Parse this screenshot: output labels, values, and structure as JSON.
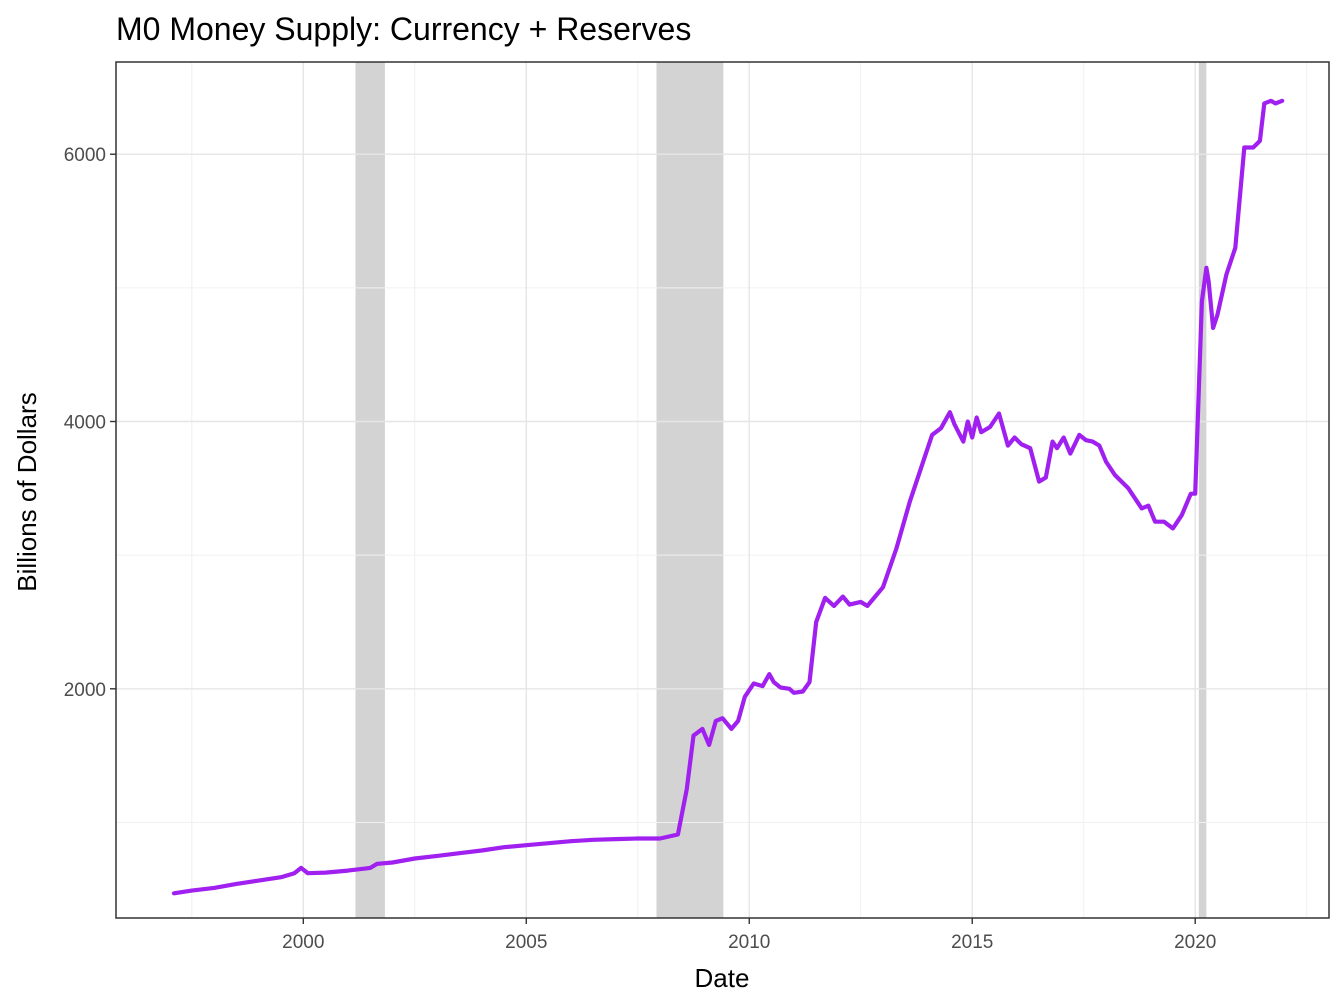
{
  "chart_data": {
    "type": "line",
    "title": "M0 Money Supply: Currency + Reserves",
    "xlabel": "Date",
    "ylabel": "Billions of Dollars",
    "xlim": [
      1995.8,
      2023.0
    ],
    "ylim": [
      285,
      6690
    ],
    "x_ticks": [
      2000,
      2005,
      2010,
      2015,
      2020
    ],
    "x_tick_labels": [
      "2000",
      "2005",
      "2010",
      "2015",
      "2020"
    ],
    "y_ticks": [
      2000,
      4000,
      6000
    ],
    "y_tick_labels": [
      "2000",
      "4000",
      "6000"
    ],
    "grid": true,
    "line_color": "#a020f0",
    "recession_color": "#d3d3d3",
    "recessions": [
      {
        "start": 2001.17,
        "end": 2001.83
      },
      {
        "start": 2007.92,
        "end": 2009.42
      },
      {
        "start": 2020.08,
        "end": 2020.25
      }
    ],
    "series": [
      {
        "x": [
          1997.1,
          1997.5,
          1998.0,
          1998.5,
          1999.0,
          1999.5,
          1999.8,
          1999.95,
          2000.1,
          2000.5,
          2001.0,
          2001.5,
          2001.65,
          2002.0,
          2002.5,
          2003.0,
          2003.5,
          2004.0,
          2004.5,
          2005.0,
          2005.5,
          2006.0,
          2006.5,
          2007.0,
          2007.5,
          2008.0,
          2008.4,
          2008.6,
          2008.75,
          2008.95,
          2009.1,
          2009.25,
          2009.4,
          2009.6,
          2009.75,
          2009.9,
          2010.1,
          2010.3,
          2010.45,
          2010.55,
          2010.7,
          2010.9,
          2011.0,
          2011.2,
          2011.35,
          2011.5,
          2011.7,
          2011.9,
          2012.1,
          2012.25,
          2012.5,
          2012.65,
          2012.8,
          2013.0,
          2013.3,
          2013.6,
          2013.9,
          2014.1,
          2014.3,
          2014.5,
          2014.6,
          2014.8,
          2014.9,
          2015.0,
          2015.1,
          2015.2,
          2015.4,
          2015.6,
          2015.8,
          2015.95,
          2016.1,
          2016.3,
          2016.5,
          2016.65,
          2016.8,
          2016.9,
          2017.05,
          2017.2,
          2017.4,
          2017.55,
          2017.7,
          2017.85,
          2018.0,
          2018.2,
          2018.5,
          2018.8,
          2018.95,
          2019.1,
          2019.3,
          2019.5,
          2019.7,
          2019.9,
          2020.0,
          2020.15,
          2020.25,
          2020.3,
          2020.4,
          2020.5,
          2020.7,
          2020.9,
          2021.1,
          2021.3,
          2021.45,
          2021.55,
          2021.7,
          2021.8,
          2021.95
        ],
        "y": [
          470,
          490,
          510,
          540,
          565,
          590,
          620,
          660,
          620,
          625,
          640,
          660,
          690,
          700,
          730,
          750,
          770,
          790,
          815,
          830,
          845,
          860,
          870,
          875,
          880,
          880,
          910,
          1250,
          1650,
          1700,
          1580,
          1760,
          1780,
          1700,
          1760,
          1940,
          2040,
          2020,
          2110,
          2050,
          2010,
          2000,
          1970,
          1980,
          2050,
          2500,
          2680,
          2620,
          2690,
          2630,
          2650,
          2620,
          2680,
          2760,
          3050,
          3400,
          3700,
          3900,
          3950,
          4070,
          3980,
          3850,
          4000,
          3880,
          4030,
          3920,
          3960,
          4060,
          3820,
          3880,
          3830,
          3800,
          3550,
          3580,
          3850,
          3800,
          3880,
          3760,
          3900,
          3860,
          3850,
          3820,
          3700,
          3600,
          3500,
          3350,
          3370,
          3250,
          3250,
          3200,
          3300,
          3460,
          3460,
          4900,
          5150,
          5050,
          4700,
          4800,
          5100,
          5300,
          6050,
          6050,
          6100,
          6380,
          6400,
          6380,
          6400
        ]
      }
    ]
  }
}
